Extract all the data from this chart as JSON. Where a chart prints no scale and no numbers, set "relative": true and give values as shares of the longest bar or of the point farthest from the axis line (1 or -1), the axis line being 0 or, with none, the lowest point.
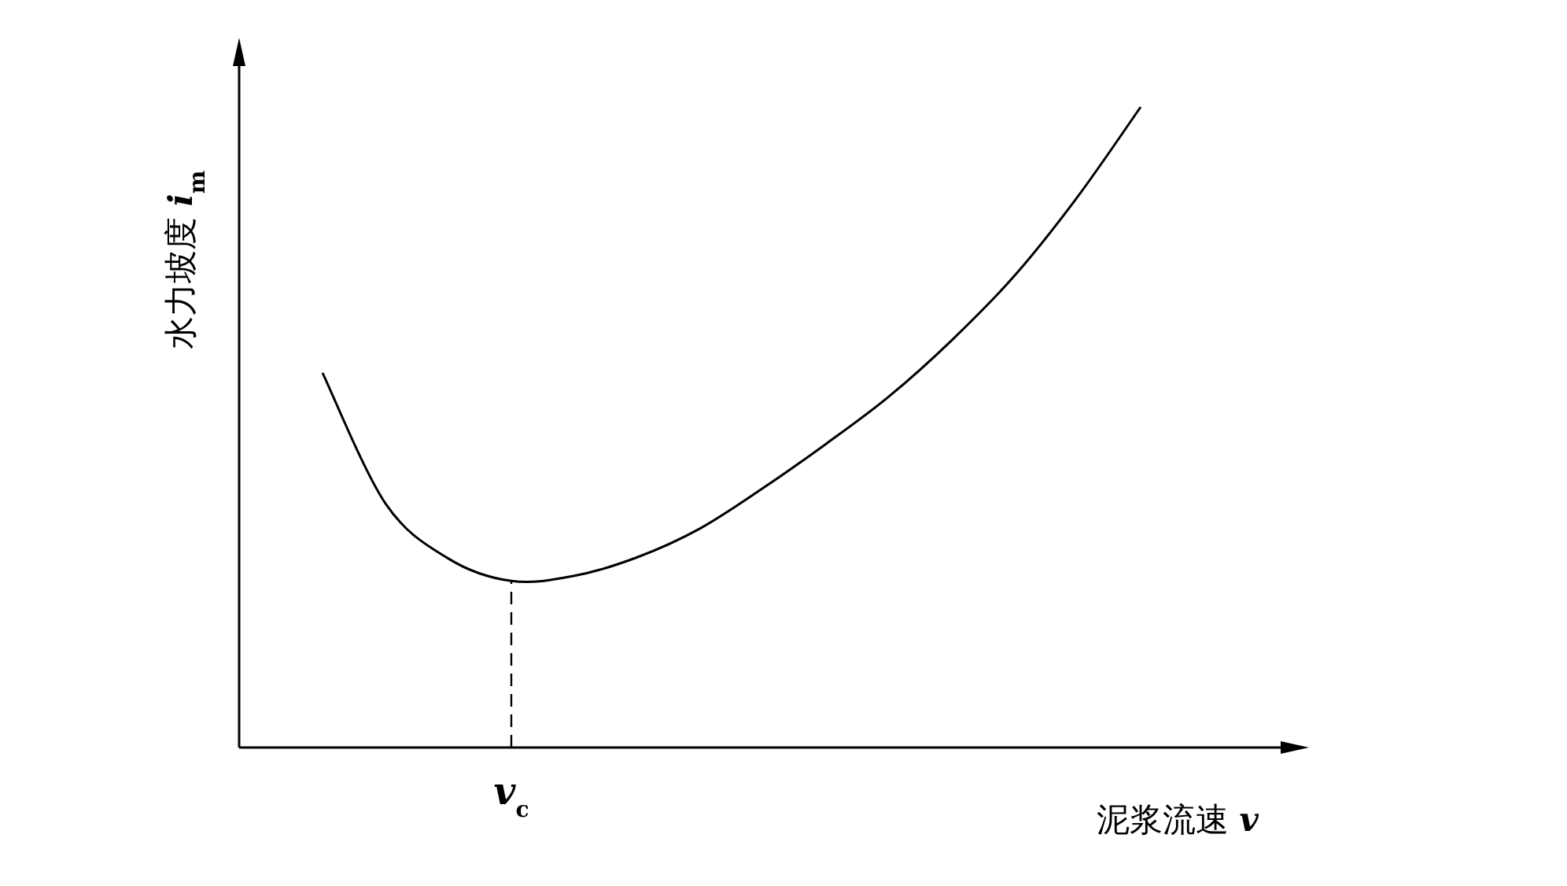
{
  "chart_data": {
    "type": "line",
    "relative": true,
    "xlabel": "泥浆流速 *v*",
    "ylabel": "水力坡度 *i*$_{m}$",
    "categories": [
      null,
      null,
      null,
      null,
      null,
      null,
      null,
      null,
      null,
      null,
      null,
      null,
      null,
      null
    ],
    "values": [
      0.585,
      0.381,
      0.295,
      0.26,
      0.268,
      0.297,
      0.342,
      0.405,
      0.474,
      0.548,
      0.636,
      0.737,
      0.86,
      1
    ],
    "color": "#000000",
    "marker": "none",
    "line_style": "solid",
    "annotations": [
      "*v*$_{c}$"
    ]
  }
}
